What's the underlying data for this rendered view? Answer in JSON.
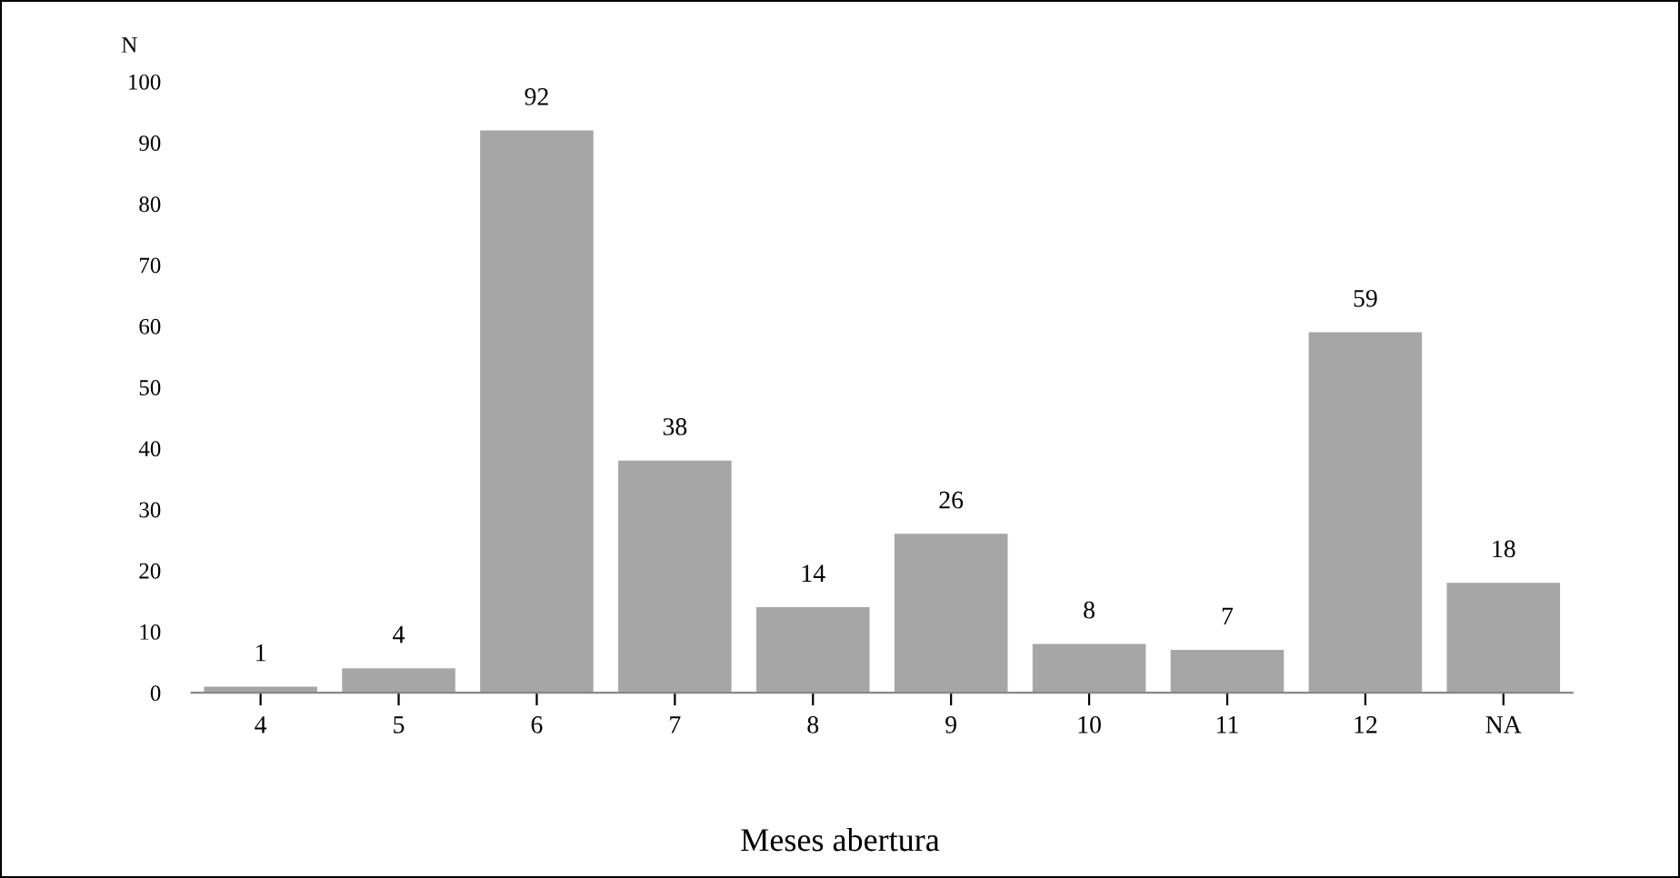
{
  "chart_data": {
    "type": "bar",
    "ylabel": "N",
    "xlabel": "Meses abertura",
    "categories": [
      "4",
      "5",
      "6",
      "7",
      "8",
      "9",
      "10",
      "11",
      "12",
      "NA"
    ],
    "values": [
      1,
      4,
      92,
      38,
      14,
      26,
      8,
      7,
      59,
      18
    ],
    "color": "#a6a6a6",
    "ylim": [
      0,
      100
    ],
    "yticks": [
      0,
      10,
      20,
      30,
      40,
      50,
      60,
      70,
      80,
      90,
      100
    ],
    "grid": false,
    "data_labels": true
  }
}
